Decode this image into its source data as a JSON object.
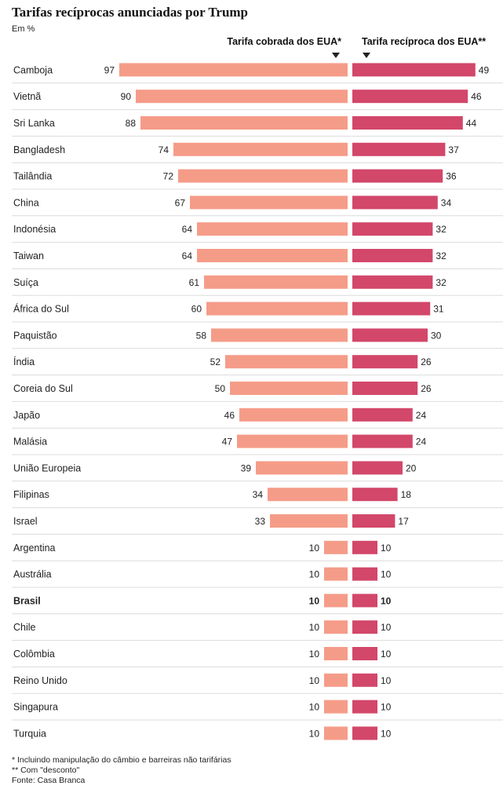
{
  "title": "Tarifas recíprocas anunciadas por Trump",
  "subtitle": "Em %",
  "colors": {
    "left_bar": "#f59c88",
    "right_bar": "#d2476a",
    "row_line": "#dcdcdc"
  },
  "chart_data": {
    "type": "bar",
    "title": "Tarifas recíprocas anunciadas por Trump",
    "unit": "Em %",
    "highlight": "Brasil",
    "categories": [
      "Camboja",
      "Vietnã",
      "Sri Lanka",
      "Bangladesh",
      "Tailândia",
      "China",
      "Indonésia",
      "Taiwan",
      "Suíça",
      "África do Sul",
      "Paquistão",
      "Índia",
      "Coreia do Sul",
      "Japão",
      "Malásia",
      "União Europeia",
      "Filipinas",
      "Israel",
      "Argentina",
      "Austrália",
      "Brasil",
      "Chile",
      "Colômbia",
      "Reino Unido",
      "Singapura",
      "Turquia"
    ],
    "series": [
      {
        "name": "Tarifa cobrada dos EUA*",
        "values": [
          97,
          90,
          88,
          74,
          72,
          67,
          64,
          64,
          61,
          60,
          58,
          52,
          50,
          46,
          47,
          39,
          34,
          33,
          10,
          10,
          10,
          10,
          10,
          10,
          10,
          10
        ]
      },
      {
        "name": "Tarifa recíproca dos EUA**",
        "values": [
          49,
          46,
          44,
          37,
          36,
          34,
          32,
          32,
          32,
          31,
          30,
          26,
          26,
          24,
          24,
          20,
          18,
          17,
          10,
          10,
          10,
          10,
          10,
          10,
          10,
          10
        ]
      }
    ]
  },
  "notes": {
    "note1": "* Incluindo manipulação do câmbio e barreiras não tarifárias",
    "note2": "** Com \"desconto\"",
    "source": "Fonte: Casa Branca"
  }
}
